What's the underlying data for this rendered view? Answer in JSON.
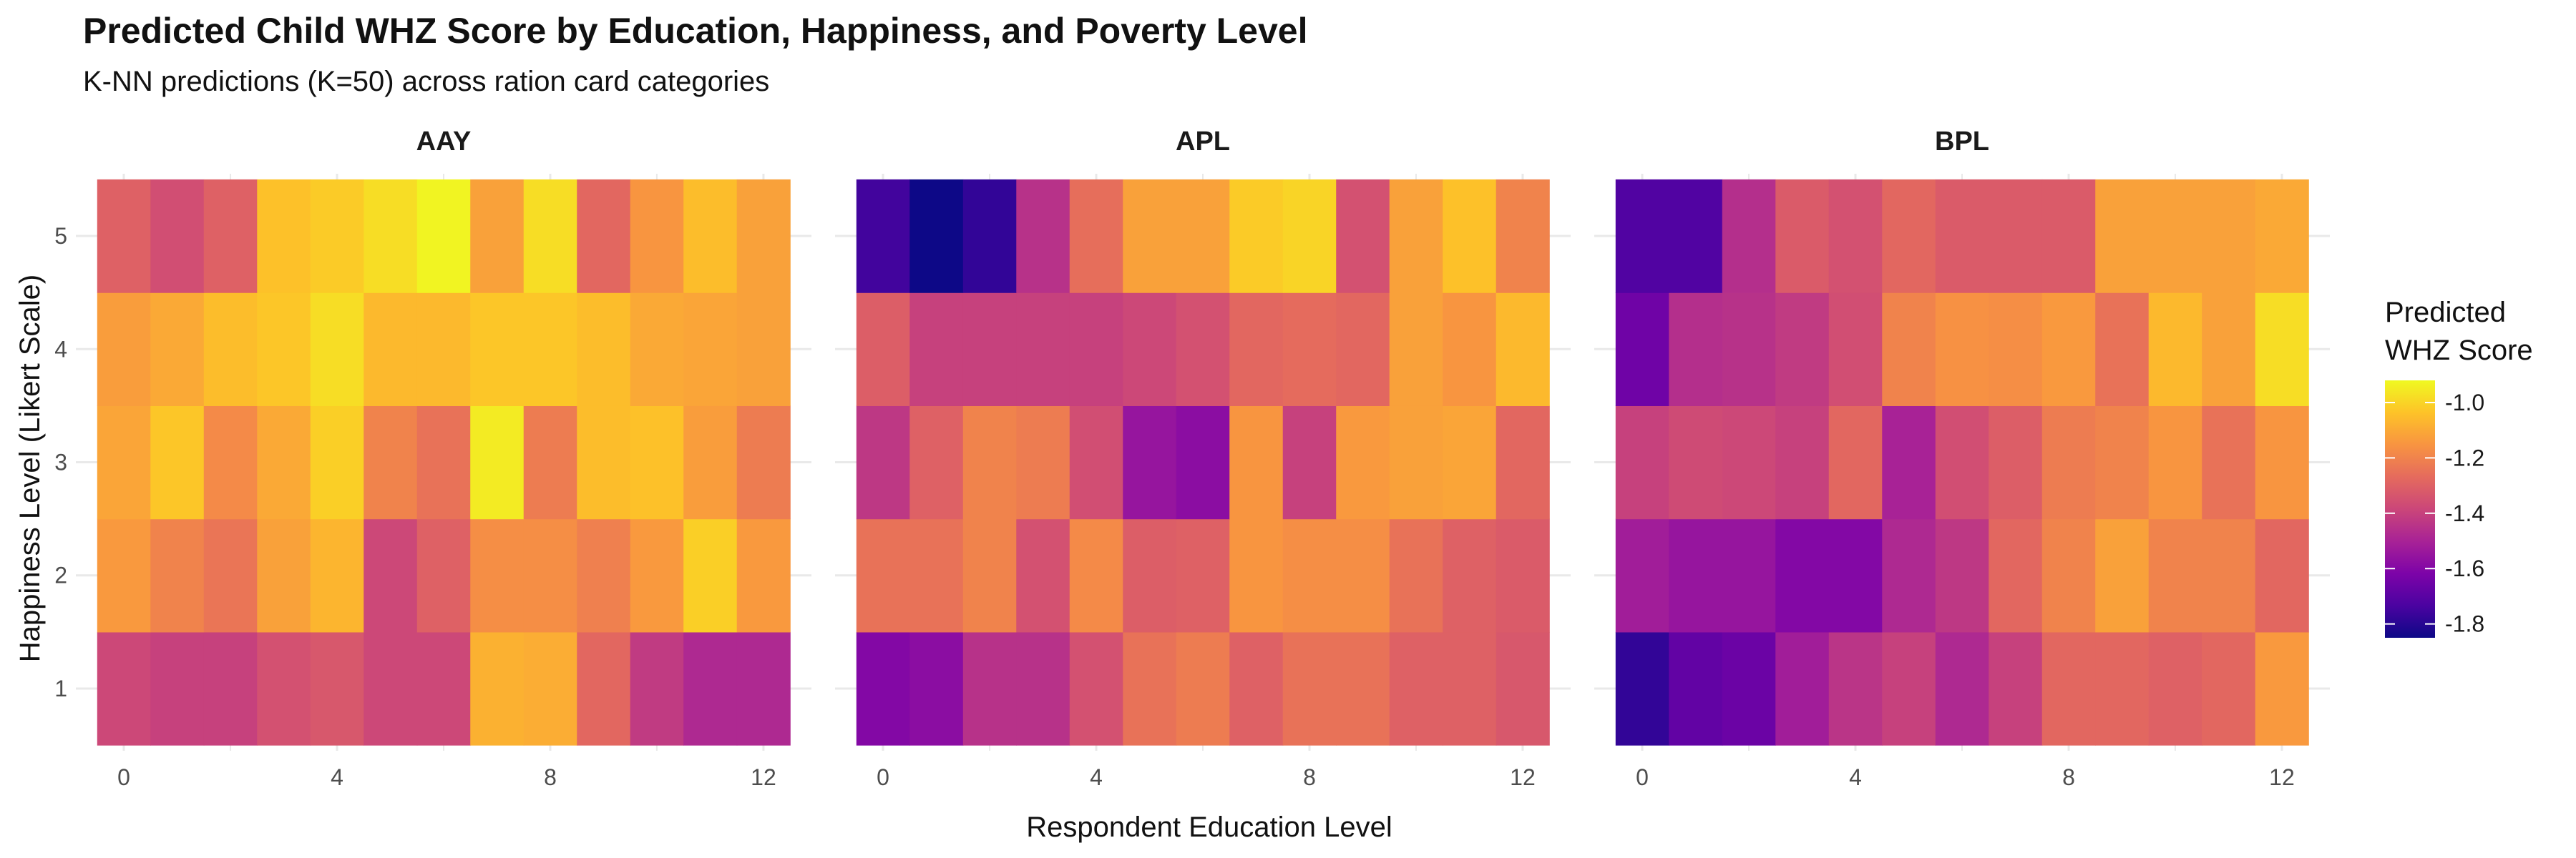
{
  "chart_data": {
    "type": "heatmap",
    "title": "Predicted Child WHZ Score by Education, Happiness, and Poverty Level",
    "subtitle": "K-NN predictions (K=50) across ration card categories",
    "xlabel": "Respondent Education Level",
    "ylabel": "Happiness Level (Likert Scale)",
    "x": [
      0,
      1,
      2,
      3,
      4,
      5,
      6,
      7,
      8,
      9,
      10,
      11,
      12
    ],
    "y": [
      1,
      2,
      3,
      4,
      5
    ],
    "x_ticks": [
      0,
      4,
      8,
      12
    ],
    "y_ticks": [
      1,
      2,
      3,
      4,
      5
    ],
    "xlim": [
      -0.9,
      12.9
    ],
    "ylim": [
      0.45,
      5.55
    ],
    "colorscale": "plasma",
    "value_range": [
      -1.85,
      -0.92
    ],
    "legend": {
      "title_lines": [
        "Predicted",
        "WHZ Score"
      ],
      "ticks": [
        -1.0,
        -1.2,
        -1.4,
        -1.6,
        -1.8
      ],
      "tick_labels": [
        "-1.0",
        "-1.2",
        "-1.4",
        "-1.6",
        "-1.8"
      ],
      "position": "right"
    },
    "panels": [
      {
        "name": "AAY",
        "z": [
          [
            -1.38,
            -1.4,
            -1.4,
            -1.35,
            -1.33,
            -1.38,
            -1.38,
            -1.08,
            -1.09,
            -1.28,
            -1.42,
            -1.48,
            -1.48
          ],
          [
            -1.14,
            -1.2,
            -1.24,
            -1.12,
            -1.07,
            -1.38,
            -1.3,
            -1.17,
            -1.17,
            -1.21,
            -1.14,
            -1.01,
            -1.14
          ],
          [
            -1.11,
            -1.03,
            -1.18,
            -1.1,
            -1.01,
            -1.2,
            -1.25,
            -0.95,
            -1.22,
            -1.05,
            -1.04,
            -1.13,
            -1.22
          ],
          [
            -1.13,
            -1.1,
            -1.05,
            -1.03,
            -0.98,
            -1.06,
            -1.06,
            -1.03,
            -1.03,
            -1.05,
            -1.1,
            -1.11,
            -1.12
          ],
          [
            -1.3,
            -1.36,
            -1.3,
            -1.04,
            -1.02,
            -0.98,
            -0.93,
            -1.12,
            -0.98,
            -1.28,
            -1.15,
            -1.05,
            -1.12
          ]
        ]
      },
      {
        "name": "APL",
        "z": [
          [
            -1.6,
            -1.58,
            -1.45,
            -1.45,
            -1.35,
            -1.25,
            -1.22,
            -1.3,
            -1.25,
            -1.25,
            -1.3,
            -1.3,
            -1.33
          ],
          [
            -1.25,
            -1.25,
            -1.2,
            -1.35,
            -1.18,
            -1.31,
            -1.3,
            -1.15,
            -1.17,
            -1.17,
            -1.25,
            -1.3,
            -1.32
          ],
          [
            -1.43,
            -1.3,
            -1.2,
            -1.22,
            -1.36,
            -1.55,
            -1.58,
            -1.15,
            -1.4,
            -1.14,
            -1.12,
            -1.11,
            -1.28
          ],
          [
            -1.31,
            -1.4,
            -1.4,
            -1.4,
            -1.4,
            -1.38,
            -1.35,
            -1.28,
            -1.27,
            -1.28,
            -1.12,
            -1.15,
            -1.06
          ],
          [
            -1.75,
            -1.85,
            -1.78,
            -1.45,
            -1.26,
            -1.12,
            -1.12,
            -1.02,
            -1.0,
            -1.35,
            -1.12,
            -1.04,
            -1.2
          ]
        ]
      },
      {
        "name": "BPL",
        "z": [
          [
            -1.78,
            -1.68,
            -1.66,
            -1.52,
            -1.44,
            -1.4,
            -1.48,
            -1.4,
            -1.28,
            -1.28,
            -1.3,
            -1.28,
            -1.14
          ],
          [
            -1.52,
            -1.55,
            -1.55,
            -1.6,
            -1.6,
            -1.48,
            -1.43,
            -1.28,
            -1.2,
            -1.12,
            -1.2,
            -1.2,
            -1.28
          ],
          [
            -1.4,
            -1.37,
            -1.38,
            -1.4,
            -1.28,
            -1.5,
            -1.36,
            -1.31,
            -1.22,
            -1.2,
            -1.15,
            -1.25,
            -1.15
          ],
          [
            -1.65,
            -1.46,
            -1.45,
            -1.42,
            -1.36,
            -1.2,
            -1.16,
            -1.17,
            -1.14,
            -1.25,
            -1.06,
            -1.12,
            -0.98
          ],
          [
            -1.72,
            -1.72,
            -1.46,
            -1.32,
            -1.35,
            -1.28,
            -1.32,
            -1.32,
            -1.32,
            -1.12,
            -1.12,
            -1.12,
            -1.1
          ]
        ]
      }
    ]
  }
}
